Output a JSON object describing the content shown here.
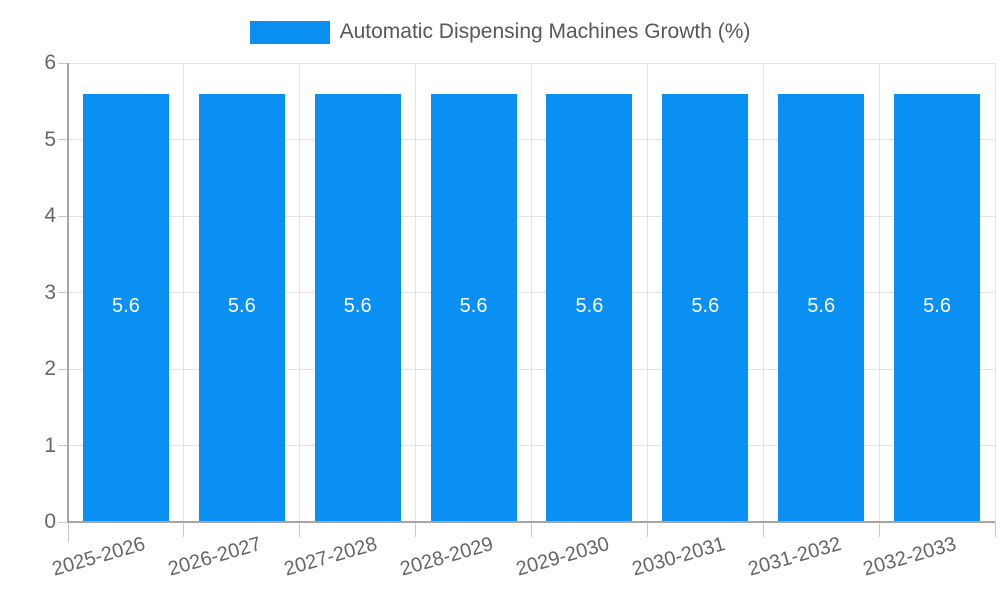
{
  "chart_data": {
    "type": "bar",
    "title": "Automatic Dispensing Machines Growth (%)",
    "categories": [
      "2025-2026",
      "2026-2027",
      "2027-2028",
      "2028-2029",
      "2029-2030",
      "2030-2031",
      "2031-2032",
      "2032-2033"
    ],
    "values": [
      5.6,
      5.6,
      5.6,
      5.6,
      5.6,
      5.6,
      5.6,
      5.6
    ],
    "bar_value_labels": [
      "5.6",
      "5.6",
      "5.6",
      "5.6",
      "5.6",
      "5.6",
      "5.6",
      "5.6"
    ],
    "xlabel": "",
    "ylabel": "",
    "ylim": [
      0,
      6
    ],
    "yticks": [
      0,
      1,
      2,
      3,
      4,
      5,
      6
    ],
    "grid": true,
    "legend_position": "top",
    "colors": {
      "bar": "#0990F2",
      "bar_label": "#FFFFFF",
      "tick_label": "#666666",
      "legend_text": "#58585A",
      "gridline": "#E3E3E3",
      "axis_line": "#A6A6A6",
      "tick_mark": "#C9C9C9",
      "background": "#FFFFFF"
    }
  }
}
